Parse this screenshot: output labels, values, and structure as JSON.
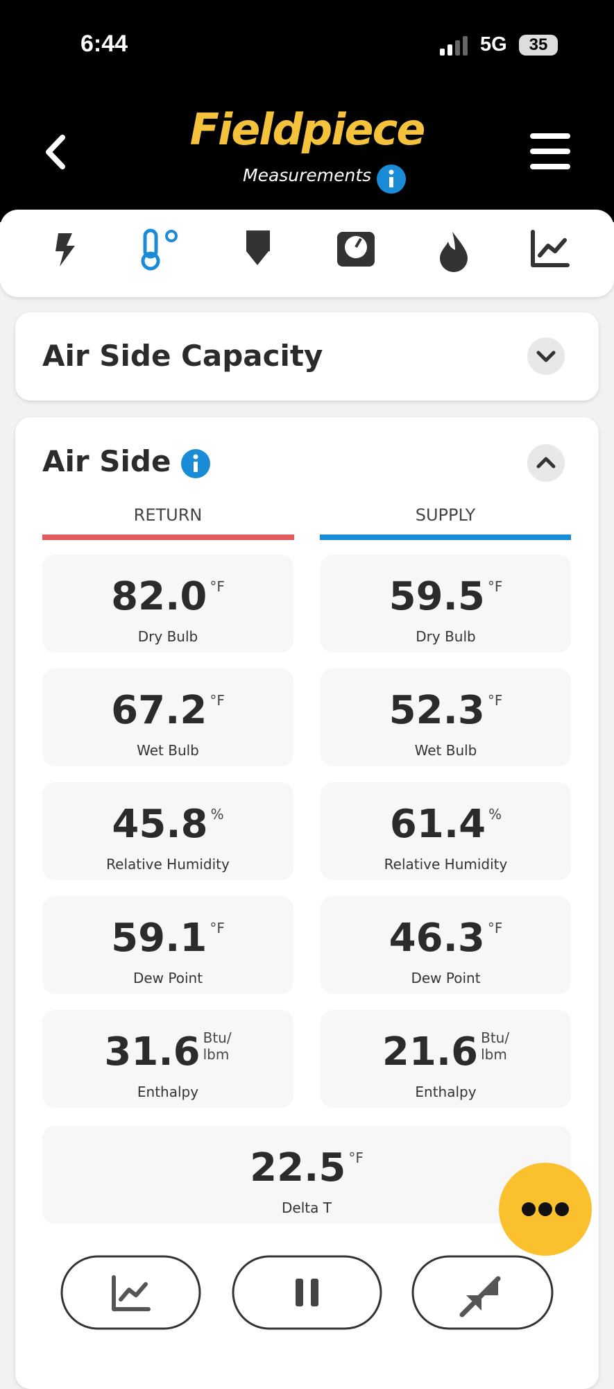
{
  "status": {
    "time": "6:44",
    "network": "5G",
    "battery": "35"
  },
  "header": {
    "brand": "Fieldpiece",
    "subtitle": "Measurements"
  },
  "sections": [
    {
      "title": "Air Side Capacity"
    },
    {
      "title": "Air Side",
      "columns": [
        "RETURN",
        "SUPPLY"
      ],
      "readings": [
        [
          {
            "value": "82.0",
            "unit": "°F",
            "label": "Dry Bulb"
          },
          {
            "value": "59.5",
            "unit": "°F",
            "label": "Dry Bulb"
          }
        ],
        [
          {
            "value": "67.2",
            "unit": "°F",
            "label": "Wet Bulb"
          },
          {
            "value": "52.3",
            "unit": "°F",
            "label": "Wet Bulb"
          }
        ],
        [
          {
            "value": "45.8",
            "unit": "%",
            "label": "Relative Humidity"
          },
          {
            "value": "61.4",
            "unit": "%",
            "label": "Relative Humidity"
          }
        ],
        [
          {
            "value": "59.1",
            "unit": "°F",
            "label": "Dew Point"
          },
          {
            "value": "46.3",
            "unit": "°F",
            "label": "Dew Point"
          }
        ],
        [
          {
            "value": "31.6",
            "unit": "Btu/\nlbm",
            "label": "Enthalpy"
          },
          {
            "value": "21.6",
            "unit": "Btu/\nlbm",
            "label": "Enthalpy"
          }
        ]
      ],
      "delta": {
        "value": "22.5",
        "unit": "°F",
        "label": "Delta T"
      }
    }
  ]
}
